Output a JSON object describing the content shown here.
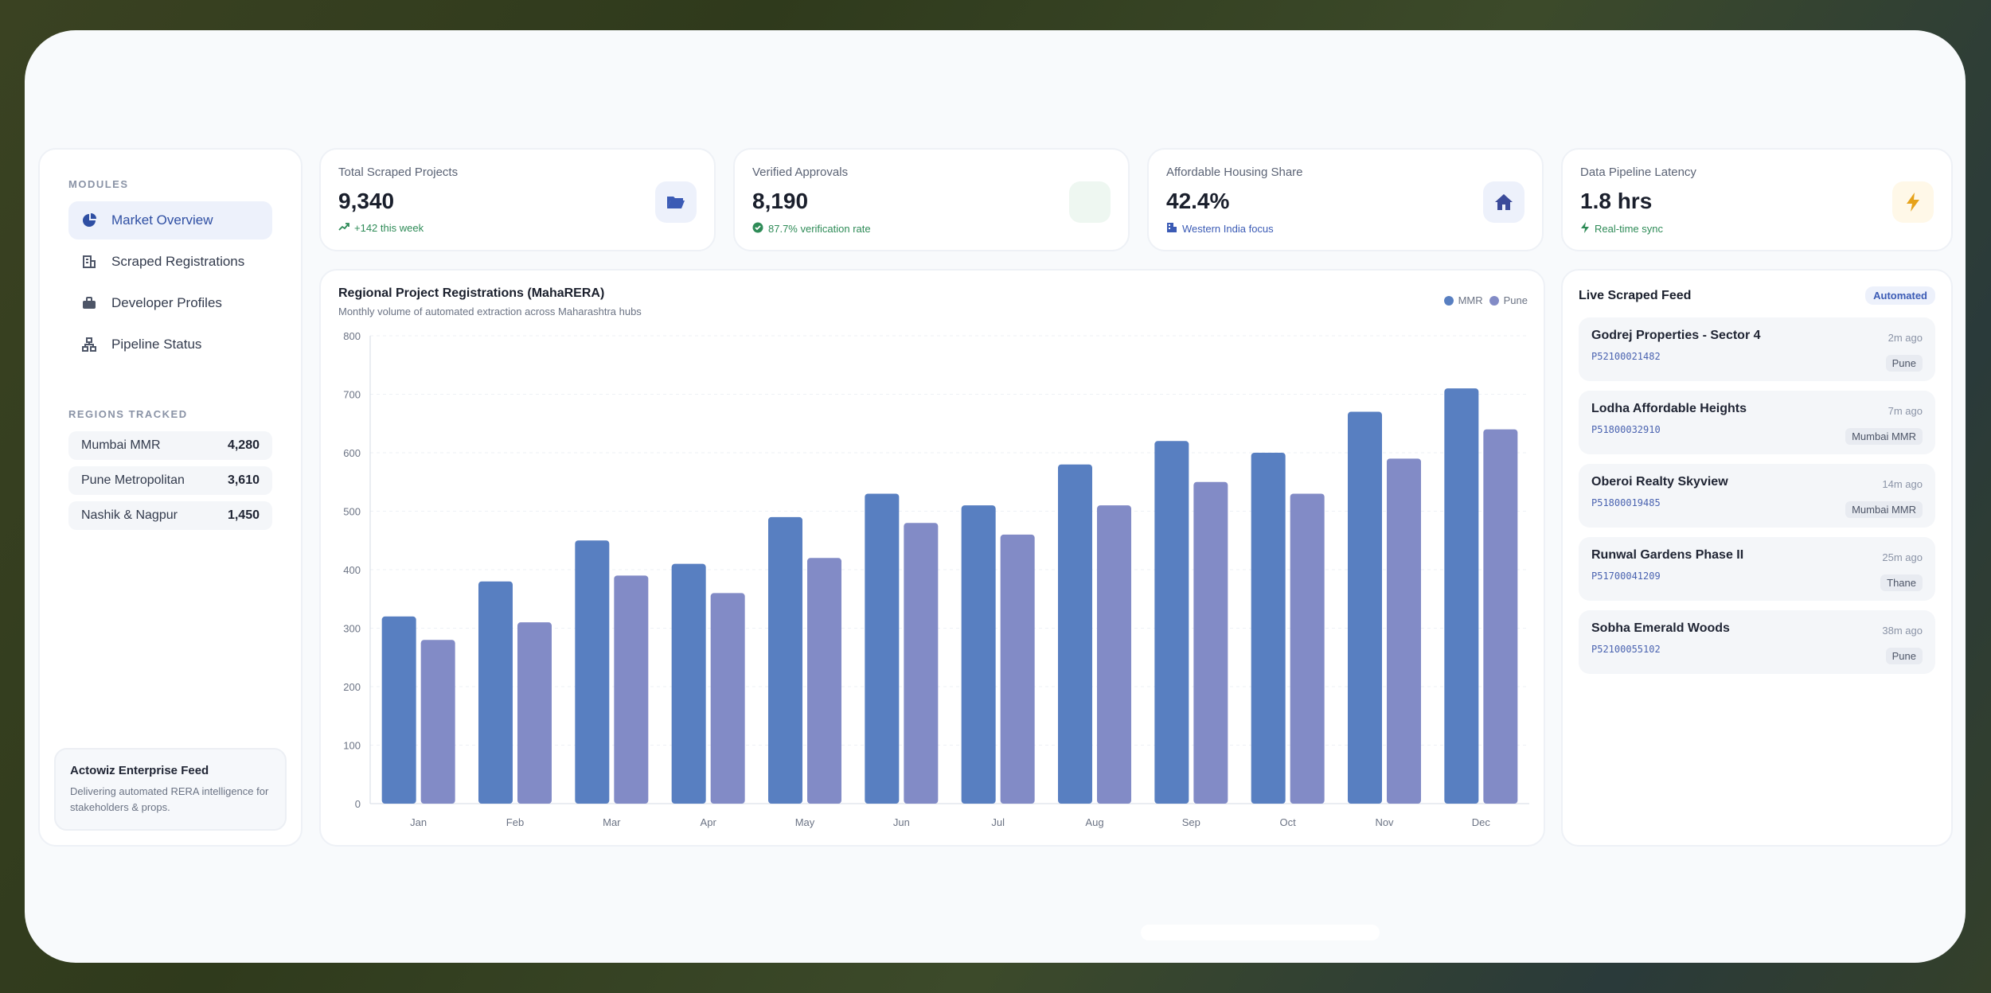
{
  "sidebar": {
    "modules_label": "MODULES",
    "items": [
      {
        "label": "Market Overview",
        "icon": "pie-chart-icon",
        "active": true
      },
      {
        "label": "Scraped Registrations",
        "icon": "building-icon",
        "active": false
      },
      {
        "label": "Developer Profiles",
        "icon": "briefcase-icon",
        "active": false
      },
      {
        "label": "Pipeline Status",
        "icon": "network-icon",
        "active": false
      }
    ],
    "regions_label": "REGIONS TRACKED",
    "regions": [
      {
        "name": "Mumbai MMR",
        "count": "4,280"
      },
      {
        "name": "Pune Metropolitan",
        "count": "3,610"
      },
      {
        "name": "Nashik & Nagpur",
        "count": "1,450"
      }
    ],
    "promo": {
      "title": "Actowiz Enterprise Feed",
      "text": "Delivering automated RERA intelligence for stakeholders & props."
    }
  },
  "kpis": [
    {
      "title": "Total Scraped Projects",
      "value": "9,340",
      "sub": "+142 this week",
      "sub_icon": "trend-up-icon",
      "badge_icon": "folder-icon",
      "accent": "#2e8b57",
      "badge_bg": "#edf1fb",
      "icon_color": "#3b5bb5"
    },
    {
      "title": "Verified Approvals",
      "value": "8,190",
      "sub": "87.7% verification rate",
      "sub_icon": "check-circle-icon",
      "badge_icon": "",
      "accent": "#2e8b57",
      "badge_bg": "#eef7f1",
      "icon_color": "#2e8b57"
    },
    {
      "title": "Affordable Housing Share",
      "value": "42.4%",
      "sub": "Western India focus",
      "sub_icon": "building-icon",
      "badge_icon": "home-icon",
      "accent": "#3b5bb5",
      "badge_bg": "#edf1fb",
      "icon_color": "#3b4b9a"
    },
    {
      "title": "Data Pipeline Latency",
      "value": "1.8 hrs",
      "sub": "Real-time sync",
      "sub_icon": "bolt-icon",
      "badge_icon": "bolt-icon",
      "accent": "#2e8b57",
      "badge_bg": "#fff8e8",
      "icon_color": "#e6a21a"
    }
  ],
  "chart_data": {
    "type": "bar",
    "title": "Regional Project Registrations (MahaRERA)",
    "subtitle": "Monthly volume of automated extraction across Maharashtra hubs",
    "categories": [
      "Jan",
      "Feb",
      "Mar",
      "Apr",
      "May",
      "Jun",
      "Jul",
      "Aug",
      "Sep",
      "Oct",
      "Nov",
      "Dec"
    ],
    "series": [
      {
        "name": "MMR",
        "color": "#587fc1",
        "values": [
          320,
          380,
          450,
          410,
          490,
          530,
          510,
          580,
          620,
          600,
          670,
          710
        ]
      },
      {
        "name": "Pune",
        "color": "#828bc6",
        "values": [
          280,
          310,
          390,
          360,
          420,
          480,
          460,
          510,
          550,
          530,
          590,
          640
        ]
      }
    ],
    "ylim": [
      0,
      800
    ],
    "yticks": [
      "0",
      "100",
      "200",
      "300",
      "400",
      "500",
      "600",
      "700",
      "800"
    ],
    "grid": true,
    "legend": "top-right"
  },
  "feed": {
    "title": "Live Scraped Feed",
    "badge": "Automated",
    "items": [
      {
        "name": "Godrej Properties - Sector 4",
        "id": "P52100021482",
        "time": "2m ago",
        "region": "Pune"
      },
      {
        "name": "Lodha Affordable Heights",
        "id": "P51800032910",
        "time": "7m ago",
        "region": "Mumbai MMR"
      },
      {
        "name": "Oberoi Realty Skyview",
        "id": "P51800019485",
        "time": "14m ago",
        "region": "Mumbai MMR"
      },
      {
        "name": "Runwal Gardens Phase II",
        "id": "P51700041209",
        "time": "25m ago",
        "region": "Thane"
      },
      {
        "name": "Sobha Emerald Woods",
        "id": "P52100055102",
        "time": "38m ago",
        "region": "Pune"
      }
    ]
  }
}
